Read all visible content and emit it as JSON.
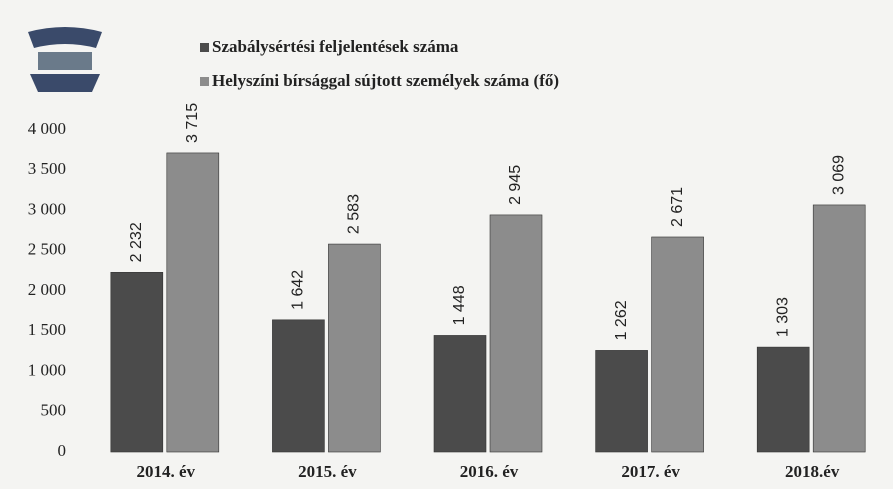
{
  "chart_data": {
    "type": "bar",
    "categories": [
      "2014. év",
      "2015. év",
      "2016. év",
      "2017. év",
      "2018.év"
    ],
    "series": [
      {
        "name": "Szabálysértési feljelentések száma",
        "color": "#4b4b4b",
        "values": [
          2232,
          1642,
          1448,
          1262,
          1303
        ],
        "value_labels": [
          "2 232",
          "1 642",
          "1 448",
          "1 262",
          "1 303"
        ]
      },
      {
        "name": "Helyszíni bírsággal sújtott személyek száma (fő)",
        "color": "#8c8c8c",
        "values": [
          3715,
          2583,
          2945,
          2671,
          3069
        ],
        "value_labels": [
          "3 715",
          "2 583",
          "2 945",
          "2 671",
          "3 069"
        ]
      }
    ],
    "ylim": [
      0,
      4000
    ],
    "yticks": [
      {
        "value": 0,
        "label": "0"
      },
      {
        "value": 500,
        "label": "500"
      },
      {
        "value": 1000,
        "label": "1 000"
      },
      {
        "value": 1500,
        "label": "1 500"
      },
      {
        "value": 2000,
        "label": "2 000"
      },
      {
        "value": 2500,
        "label": "2 500"
      },
      {
        "value": 3000,
        "label": "3 000"
      },
      {
        "value": 3500,
        "label": "3 500"
      },
      {
        "value": 4000,
        "label": "4 000"
      }
    ]
  }
}
